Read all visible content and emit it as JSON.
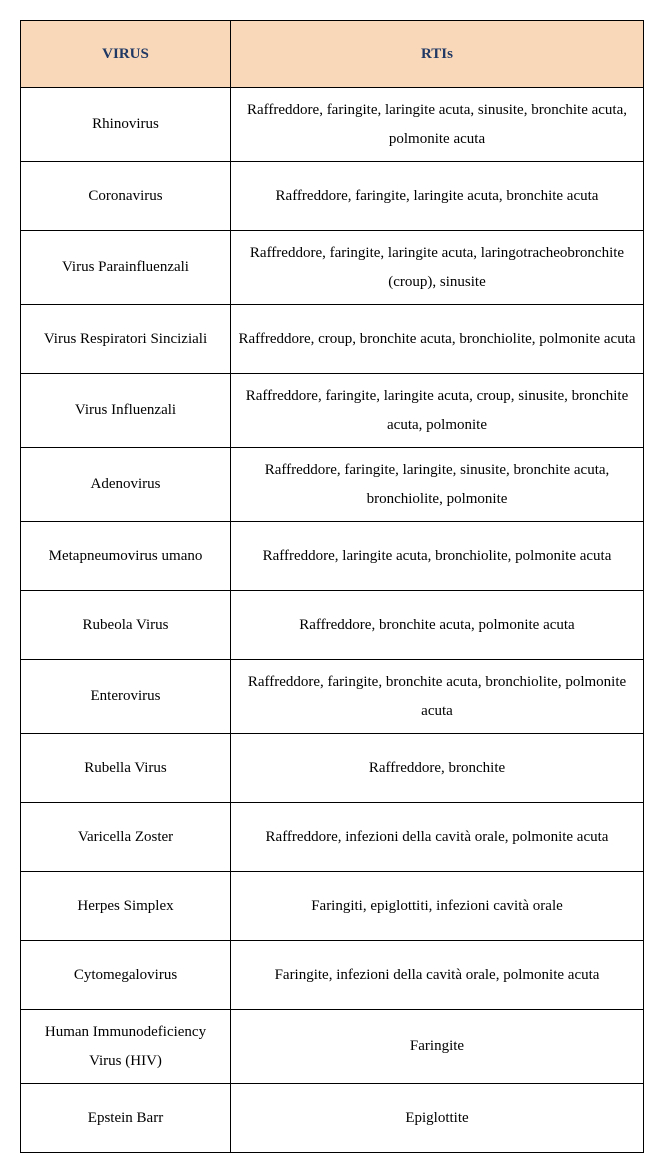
{
  "table": {
    "header_bg": "#f9d8b9",
    "header_text_color": "#1f3864",
    "columns": [
      "VIRUS",
      "RTIs"
    ],
    "rows": [
      {
        "virus": "Rhinovirus",
        "rti": "Raffreddore, faringite, laringite acuta, sinusite, bronchite acuta, polmonite acuta"
      },
      {
        "virus": "Coronavirus",
        "rti": "Raffreddore, faringite, laringite acuta, bronchite acuta"
      },
      {
        "virus": "Virus Parainfluenzali",
        "rti": "Raffreddore, faringite, laringite acuta, laringotracheobronchite (croup), sinusite"
      },
      {
        "virus": "Virus Respiratori Sinciziali",
        "rti": "Raffreddore, croup, bronchite acuta, bronchiolite, polmonite acuta"
      },
      {
        "virus": "Virus Influenzali",
        "rti": "Raffreddore, faringite, laringite acuta, croup, sinusite, bronchite acuta, polmonite"
      },
      {
        "virus": "Adenovirus",
        "rti": "Raffreddore, faringite, laringite, sinusite, bronchite acuta, bronchiolite, polmonite"
      },
      {
        "virus": "Metapneumovirus umano",
        "rti": "Raffreddore, laringite acuta, bronchiolite, polmonite acuta"
      },
      {
        "virus": "Rubeola Virus",
        "rti": "Raffreddore, bronchite acuta, polmonite acuta"
      },
      {
        "virus": "Enterovirus",
        "rti": "Raffreddore, faringite, bronchite acuta, bronchiolite, polmonite acuta"
      },
      {
        "virus": "Rubella Virus",
        "rti": "Raffreddore, bronchite"
      },
      {
        "virus": "Varicella Zoster",
        "rti": "Raffreddore, infezioni della cavità orale, polmonite acuta"
      },
      {
        "virus": "Herpes Simplex",
        "rti": "Faringiti, epiglottiti, infezioni cavità orale"
      },
      {
        "virus": "Cytomegalovirus",
        "rti": "Faringite, infezioni della cavità orale, polmonite acuta"
      },
      {
        "virus": "Human Immunodeficiency Virus (HIV)",
        "rti": "Faringite"
      },
      {
        "virus": "Epstein Barr",
        "rti": "Epiglottite"
      }
    ]
  }
}
